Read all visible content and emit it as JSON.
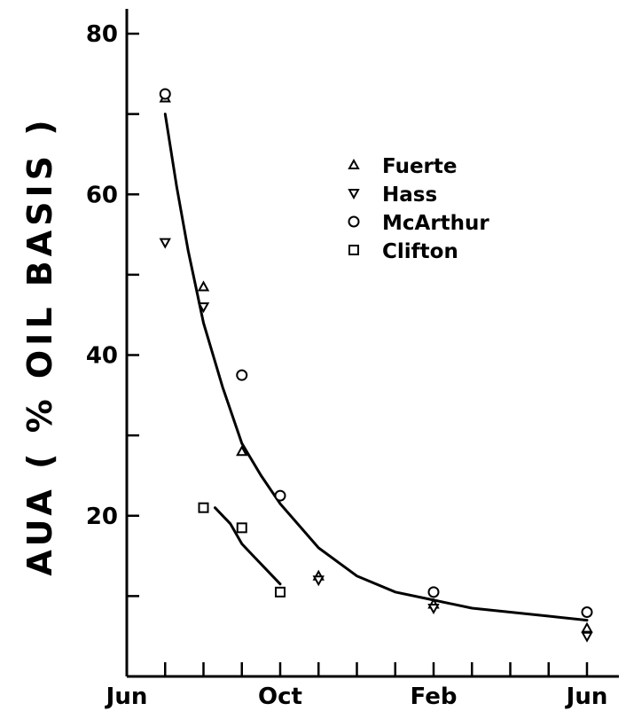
{
  "chart_data": {
    "type": "scatter",
    "title": "",
    "xlabel": "",
    "ylabel": "AUA ( % OIL BASIS )",
    "xlim": [
      0,
      12
    ],
    "ylim": [
      0,
      80
    ],
    "x_unit": "months",
    "x_tick_values": [
      0,
      2,
      4,
      6,
      8,
      10,
      12
    ],
    "x_minor_ticks": [
      1,
      3,
      5,
      7,
      9,
      11
    ],
    "x_ticks": [
      {
        "value": 0,
        "label": "Jun"
      },
      {
        "value": 4,
        "label": "Oct"
      },
      {
        "value": 8,
        "label": "Feb"
      },
      {
        "value": 12,
        "label": "Jun"
      }
    ],
    "y_ticks": [
      20,
      40,
      60,
      80
    ],
    "y_minor_ticks": [
      10,
      30,
      50,
      70
    ],
    "grid": false,
    "legend_position": "top-right",
    "series": [
      {
        "name": "Fuerte",
        "marker": "triangle-up",
        "points": [
          [
            1,
            72
          ],
          [
            2,
            48.5
          ],
          [
            3,
            28
          ],
          [
            5,
            12.5
          ],
          [
            8,
            9
          ],
          [
            12,
            6
          ]
        ]
      },
      {
        "name": "Hass",
        "marker": "triangle-down",
        "points": [
          [
            1,
            54
          ],
          [
            2,
            46
          ],
          [
            5,
            12
          ],
          [
            8,
            8.5
          ],
          [
            12,
            5
          ]
        ]
      },
      {
        "name": "McArthur",
        "marker": "circle",
        "points": [
          [
            1,
            72.5
          ],
          [
            3,
            37.5
          ],
          [
            4,
            22.5
          ],
          [
            8,
            10.5
          ],
          [
            12,
            8
          ]
        ]
      },
      {
        "name": "Clifton",
        "marker": "square",
        "points": [
          [
            2,
            21
          ],
          [
            3,
            18.5
          ],
          [
            4,
            10.5
          ]
        ]
      }
    ],
    "fit_lines": [
      {
        "x": [
          1,
          1.3,
          1.6,
          2,
          2.5,
          3,
          3.5,
          4,
          5,
          6,
          7,
          8,
          9,
          10,
          11,
          12
        ],
        "y": [
          70,
          61,
          53,
          44,
          36,
          29,
          25,
          21.5,
          16,
          12.5,
          10.5,
          9.5,
          8.5,
          8,
          7.5,
          7
        ]
      },
      {
        "x": [
          2.3,
          2.7,
          3,
          3.3,
          3.7,
          4
        ],
        "y": [
          21,
          19,
          16.5,
          15,
          13,
          11.5
        ]
      }
    ]
  }
}
